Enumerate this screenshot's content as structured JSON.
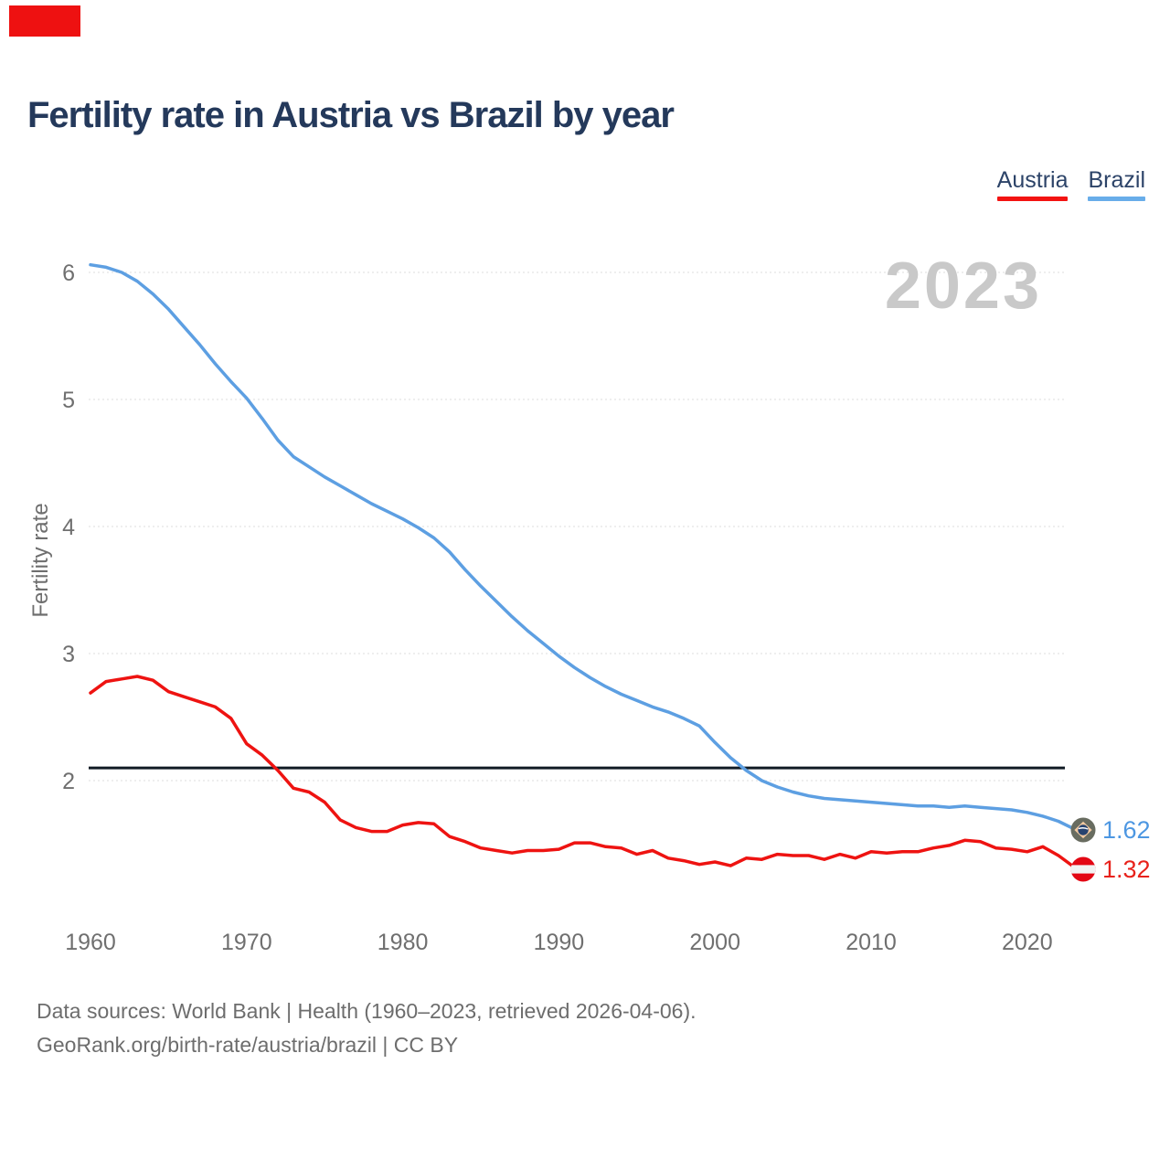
{
  "brand": {
    "corner_mark_color": "#ee1111"
  },
  "header": {
    "title": "Fertility rate in Austria vs Brazil by year"
  },
  "legend": [
    {
      "label": "Austria",
      "color": "#f31312"
    },
    {
      "label": "Brazil",
      "color": "#68ade9"
    }
  ],
  "watermark": "2023",
  "chart_data": {
    "type": "line",
    "title": "Fertility rate in Austria vs Brazil by year",
    "xlabel": "",
    "ylabel": "Fertility rate",
    "x_start": 1960,
    "x_end": 2023,
    "x_ticks": [
      1960,
      1970,
      1980,
      1990,
      2000,
      2010,
      2020
    ],
    "y_ticks": [
      2,
      3,
      4,
      5,
      6
    ],
    "ylim": [
      1.1,
      6.2
    ],
    "grid": true,
    "legend_position": "top-right",
    "reference_line": {
      "value": 2.1,
      "color": "#101b24"
    },
    "series": [
      {
        "name": "Austria",
        "color": "#ee1311",
        "end_label": "1.32",
        "end_value": 1.32,
        "values": [
          2.69,
          2.78,
          2.8,
          2.82,
          2.79,
          2.7,
          2.66,
          2.62,
          2.58,
          2.49,
          2.29,
          2.2,
          2.08,
          1.94,
          1.91,
          1.83,
          1.69,
          1.63,
          1.6,
          1.6,
          1.65,
          1.67,
          1.66,
          1.56,
          1.52,
          1.47,
          1.45,
          1.43,
          1.45,
          1.45,
          1.46,
          1.51,
          1.51,
          1.48,
          1.47,
          1.42,
          1.45,
          1.39,
          1.37,
          1.34,
          1.36,
          1.33,
          1.39,
          1.38,
          1.42,
          1.41,
          1.41,
          1.38,
          1.42,
          1.39,
          1.44,
          1.43,
          1.44,
          1.44,
          1.47,
          1.49,
          1.53,
          1.52,
          1.47,
          1.46,
          1.44,
          1.48,
          1.41,
          1.32
        ]
      },
      {
        "name": "Brazil",
        "color": "#5d9fe2",
        "end_label": "1.62",
        "end_value": 1.62,
        "values": [
          6.06,
          6.04,
          6.0,
          5.93,
          5.83,
          5.71,
          5.57,
          5.43,
          5.28,
          5.14,
          5.01,
          4.85,
          4.68,
          4.55,
          4.47,
          4.39,
          4.32,
          4.25,
          4.18,
          4.12,
          4.06,
          3.99,
          3.91,
          3.8,
          3.66,
          3.53,
          3.41,
          3.29,
          3.18,
          3.08,
          2.98,
          2.89,
          2.81,
          2.74,
          2.68,
          2.63,
          2.58,
          2.54,
          2.49,
          2.43,
          2.3,
          2.18,
          2.08,
          2.0,
          1.95,
          1.91,
          1.88,
          1.86,
          1.85,
          1.84,
          1.83,
          1.82,
          1.81,
          1.8,
          1.8,
          1.79,
          1.8,
          1.79,
          1.78,
          1.77,
          1.75,
          1.72,
          1.68,
          1.62
        ]
      }
    ]
  },
  "footer": {
    "line1": "Data sources: World Bank | Health (1960–2023, retrieved 2026-04-06).",
    "line2": "GeoRank.org/birth-rate/austria/brazil | CC BY"
  }
}
